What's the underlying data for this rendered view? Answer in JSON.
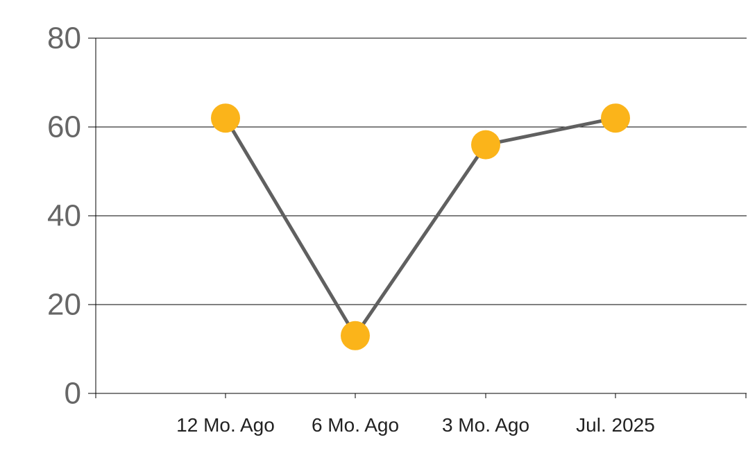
{
  "chart_data": {
    "type": "line",
    "categories": [
      "12 Mo. Ago",
      "6 Mo. Ago",
      "3 Mo. Ago",
      "Jul. 2025"
    ],
    "series": [
      {
        "values": [
          62,
          13,
          56,
          62
        ]
      }
    ],
    "ylim": [
      0,
      80
    ],
    "yticks": [
      "0",
      "20",
      "40",
      "60",
      "80"
    ],
    "title": "",
    "xlabel": "",
    "ylabel": "",
    "grid": true,
    "legend": "none",
    "colors": {
      "line": "#606060",
      "marker": "#FBB41A",
      "grid": "#000000",
      "y_tick_text": "#666666",
      "x_tick_text": "#222222"
    }
  }
}
